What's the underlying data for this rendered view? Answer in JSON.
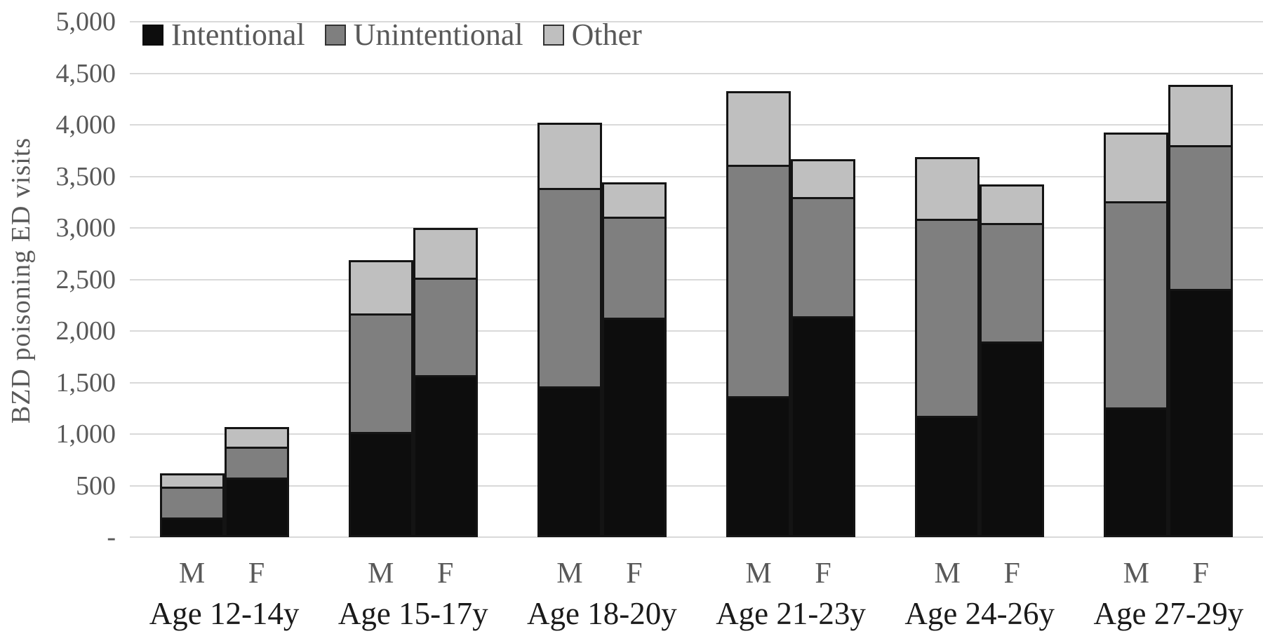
{
  "chart_data": {
    "type": "bar",
    "stacked": true,
    "title": "",
    "ylabel": "BZD poisoning ED visits",
    "xlabel": "",
    "ylim": [
      0,
      5000
    ],
    "ytick_interval": 500,
    "ytick_labels": [
      "-",
      "500",
      "1,000",
      "1,500",
      "2,000",
      "2,500",
      "3,000",
      "3,500",
      "4,000",
      "4,500",
      "5,000"
    ],
    "grid": true,
    "legend_position": "top-left",
    "legend_entries": [
      "Intentional",
      "Unintentional",
      "Other"
    ],
    "categories": [
      "Age 12-14y",
      "Age 15-17y",
      "Age 18-20y",
      "Age 21-23y",
      "Age 24-26y",
      "Age 27-29y"
    ],
    "bar_labels": [
      "M",
      "F"
    ],
    "series": [
      {
        "name": "Intentional",
        "color": "#0d0d0d",
        "values": {
          "M": [
            170,
            1000,
            1440,
            1345,
            1155,
            1235
          ],
          "F": [
            555,
            1550,
            2110,
            2125,
            1875,
            2385
          ]
        }
      },
      {
        "name": "Unintentional",
        "color": "#7f7f7f",
        "values": {
          "M": [
            300,
            1150,
            1925,
            2245,
            1910,
            2005
          ],
          "F": [
            305,
            950,
            980,
            1155,
            1150,
            1400
          ]
        }
      },
      {
        "name": "Other",
        "color": "#bfbfbf",
        "values": {
          "M": [
            150,
            535,
            655,
            740,
            625,
            685
          ],
          "F": [
            210,
            500,
            350,
            385,
            400,
            605
          ]
        }
      }
    ],
    "totals": {
      "M": [
        620,
        2685,
        4020,
        4330,
        3690,
        3925
      ],
      "F": [
        1070,
        3000,
        3440,
        3665,
        3425,
        4390
      ]
    }
  },
  "colors": {
    "background": "#ffffff",
    "gridline": "#d9d9d9",
    "axis_text": "#595959",
    "category_text": "#1a1a1a",
    "segment_border": "#141414",
    "intentional": "#0d0d0d",
    "unintentional": "#7f7f7f",
    "other": "#bfbfbf"
  }
}
